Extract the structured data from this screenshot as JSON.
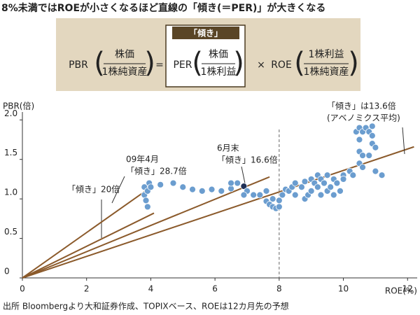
{
  "title": "8%未満ではROEが小さくなるほど直線の「傾き(＝PER)」が大きくなる",
  "formula": {
    "badge": "「傾き」",
    "pbr": "PBR",
    "pbr_num": "株価",
    "pbr_den": "1株純資産",
    "eq": "=",
    "per": "PER",
    "per_num": "株価",
    "per_den": "1株利益",
    "times": "×",
    "roe": "ROE",
    "roe_num": "1株利益",
    "roe_den": "1株純資産"
  },
  "chart_data": {
    "type": "scatter",
    "y_label": "PBR(倍)",
    "x_label": "ROE(%)",
    "source": "出所 Bloombergより大和証券作成、TOPIXベース、ROEは12カ月先の予想",
    "xlim": [
      0,
      12.3
    ],
    "ylim": [
      0,
      2.1
    ],
    "xticks": [
      0,
      2,
      4,
      6,
      8,
      10,
      12
    ],
    "yticks": [
      0,
      0.5,
      {
        "value": 1,
        "label": "1.0"
      },
      1.5,
      {
        "value": 2,
        "label": "2.0"
      }
    ],
    "vline": 8,
    "color": "#6b9dcf",
    "highlight_color": "#1f2f55",
    "x": [
      3.8,
      3.8,
      3.85,
      3.9,
      3.9,
      3.95,
      4.0,
      4.3,
      4.7,
      5.0,
      5.3,
      5.6,
      5.9,
      6.2,
      6.5,
      6.5,
      6.7,
      6.9,
      7.0,
      6.9,
      7.2,
      7.4,
      7.6,
      7.6,
      7.7,
      7.8,
      7.9,
      8.0,
      8.0,
      7.8,
      8.1,
      8.2,
      8.3,
      8.4,
      8.5,
      8.5,
      8.7,
      8.8,
      8.8,
      8.9,
      9.0,
      9.0,
      9.1,
      9.2,
      9.2,
      9.3,
      9.3,
      9.4,
      9.5,
      9.5,
      9.6,
      9.7,
      9.7,
      9.8,
      9.9,
      10.0,
      10.0,
      10.2,
      10.3,
      10.5,
      10.5,
      10.6,
      10.6,
      10.5,
      10.4,
      10.5,
      10.6,
      10.7,
      10.8,
      10.9,
      10.9,
      10.9,
      11.0,
      11.2,
      10.8,
      11.0
    ],
    "y": [
      1.15,
      1.05,
      0.98,
      0.9,
      1.1,
      1.2,
      1.15,
      1.18,
      1.2,
      1.15,
      1.12,
      1.1,
      1.12,
      1.1,
      1.13,
      1.2,
      1.2,
      1.16,
      1.1,
      1.05,
      1.05,
      1.05,
      1.1,
      0.97,
      0.93,
      0.9,
      0.88,
      0.9,
      0.98,
      1.0,
      1.05,
      1.12,
      1.1,
      1.15,
      1.2,
      1.05,
      1.15,
      1.22,
      1.0,
      1.05,
      1.25,
      1.1,
      1.2,
      1.3,
      1.15,
      1.05,
      1.25,
      1.2,
      1.3,
      1.1,
      1.15,
      1.25,
      1.05,
      1.2,
      1.1,
      1.3,
      1.25,
      1.35,
      1.3,
      1.45,
      1.6,
      1.55,
      1.4,
      1.75,
      1.85,
      1.9,
      1.85,
      1.9,
      1.85,
      1.92,
      1.8,
      1.7,
      1.65,
      1.3,
      1.55,
      1.35
    ],
    "highlight": 17,
    "line_color": "#8b5a2b",
    "lines": [
      {
        "label": [
          "「傾き」20倍"
        ],
        "slope": 20,
        "x_end": 4.1
      },
      {
        "label": [
          "09年4月",
          "「傾き」28.7倍"
        ],
        "slope": 28.7,
        "x_end": 3.8
      },
      {
        "label": [
          "6月末",
          "「傾き」16.6倍"
        ],
        "slope": 16.6,
        "x_end": 7.7
      },
      {
        "label": [
          "「傾き」は13.6倍",
          "(アベノミクス平均)"
        ],
        "slope": 13.6,
        "x_end": 12.2
      }
    ]
  }
}
